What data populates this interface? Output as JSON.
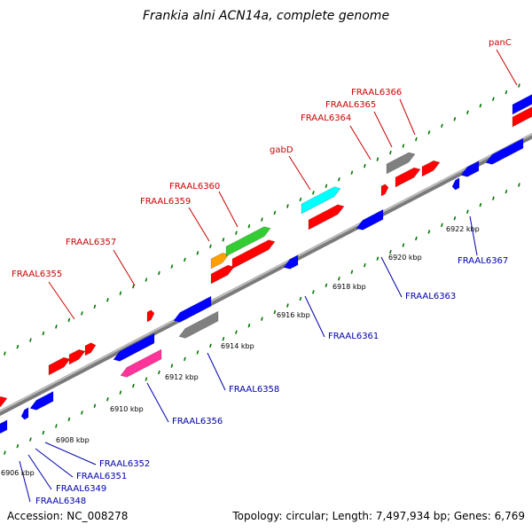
{
  "title": "Frankia alni ACN14a, complete genome",
  "footer": {
    "accession": "Accession: NC_008278",
    "summary": "Topology: circular; Length: 7,497,934 bp; Genes: 6,769"
  },
  "colors": {
    "forward_label": "#cc0000",
    "reverse_label": "#0000aa",
    "backbone": "#7a7a7a",
    "tick": "#007700"
  },
  "ticks": [
    "6906 kbp",
    "6908 kbp",
    "6910 kbp",
    "6912 kbp",
    "6914 kbp",
    "6916 kbp",
    "6918 kbp",
    "6920 kbp",
    "6922 kbp"
  ],
  "forward_labels": [
    "FRAAL6355",
    "FRAAL6357",
    "FRAAL6359",
    "FRAAL6360",
    "gabD",
    "FRAAL6364",
    "FRAAL6365",
    "FRAAL6366",
    "panC"
  ],
  "reverse_labels": [
    "FRAAL6348",
    "FRAAL6349",
    "FRAAL6351",
    "FRAAL6352",
    "FRAAL6356",
    "FRAAL6358",
    "FRAAL6361",
    "FRAAL6363",
    "FRAAL6367"
  ]
}
